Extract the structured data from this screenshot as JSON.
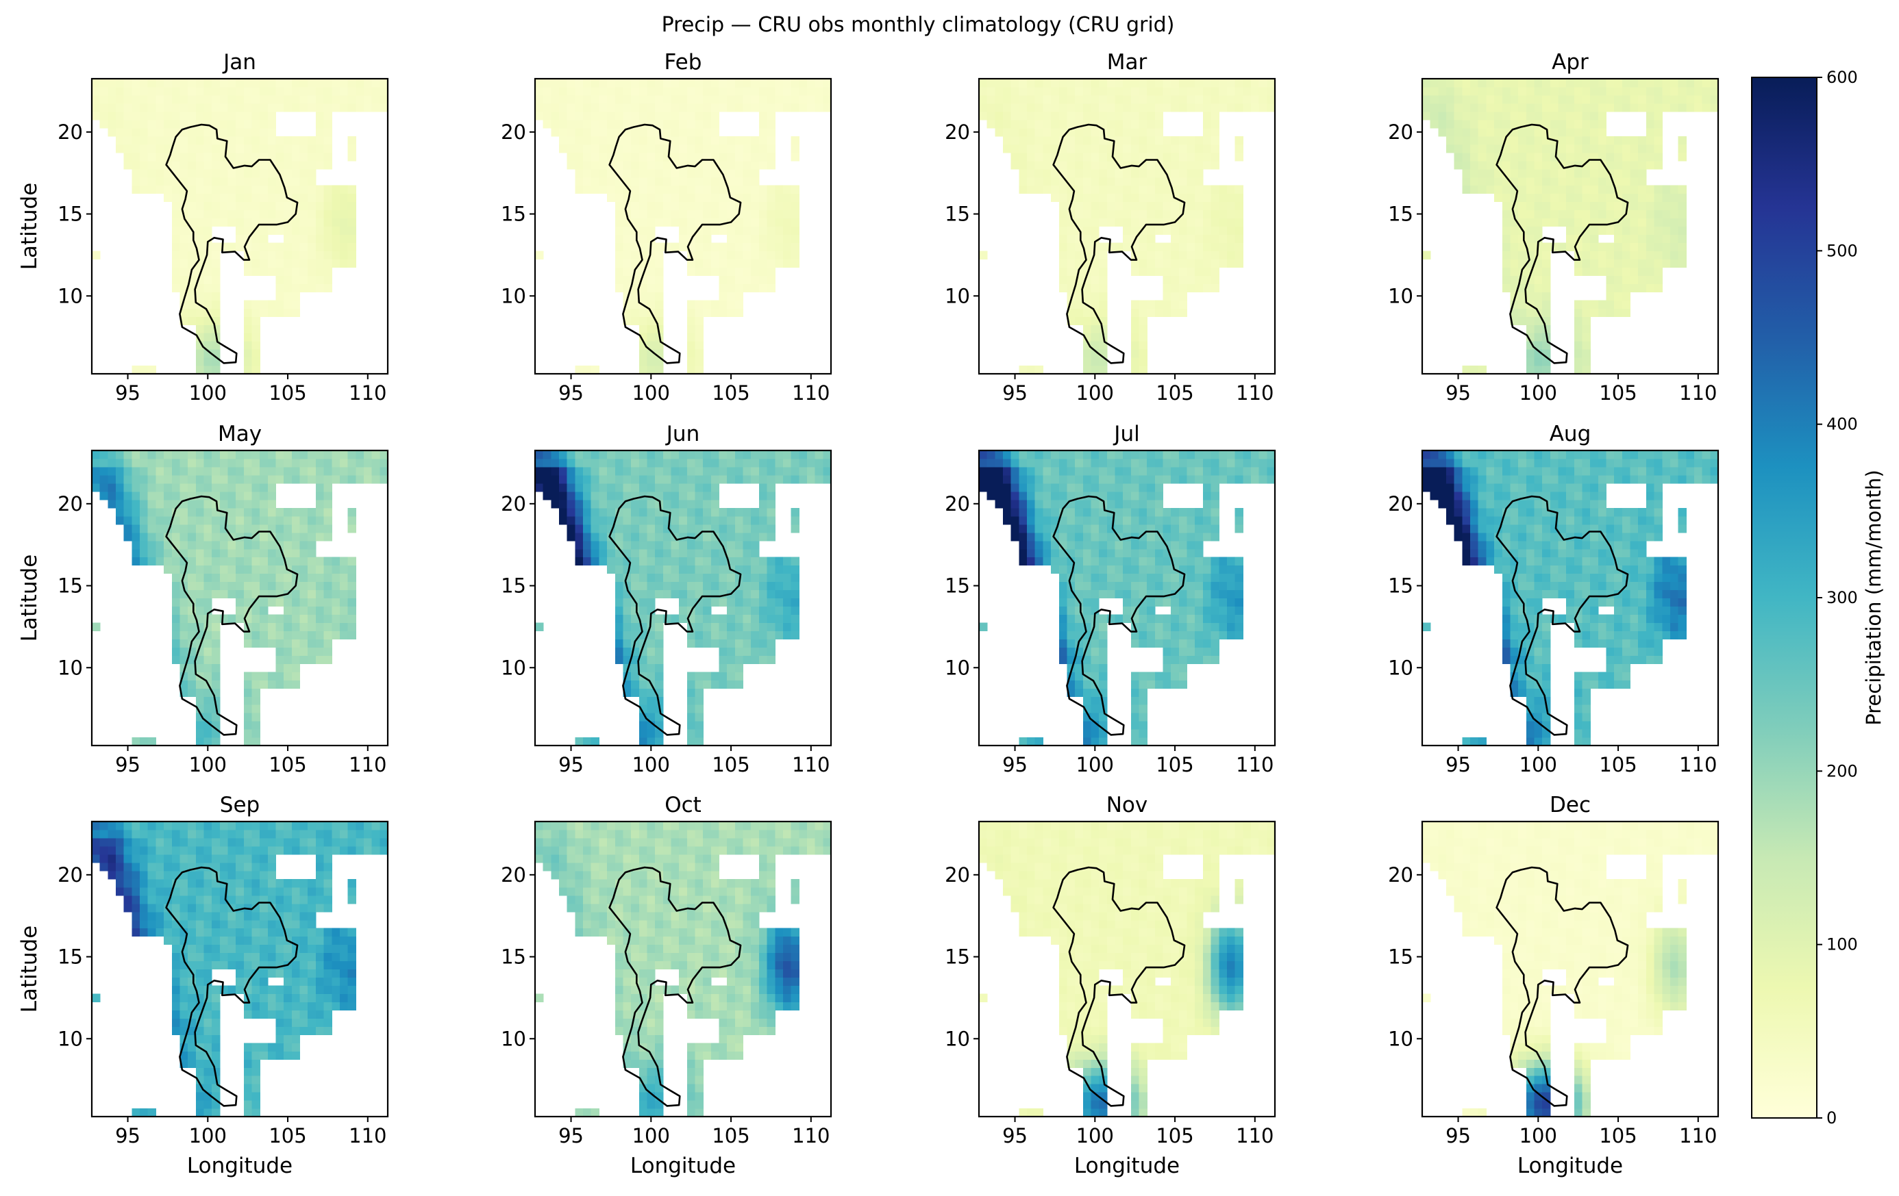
{
  "chart_data": {
    "type": "heatmap",
    "title": "Precip — CRU obs monthly climatology (CRU grid)",
    "xlabel": "Longitude",
    "ylabel": "Latitude",
    "xlim": [
      92.75,
      111.25
    ],
    "ylim": [
      5.25,
      23.25
    ],
    "xticks": [
      95,
      100,
      105,
      110
    ],
    "yticks": [
      10,
      15,
      20
    ],
    "colormap": "YlGnBu",
    "colorbar": {
      "label": "Precipitation (mm/month)",
      "range": [
        0,
        600
      ],
      "ticks": [
        0,
        100,
        200,
        300,
        400,
        500,
        600
      ],
      "stops": [
        "#ffffd9",
        "#edf8b1",
        "#c7e9b4",
        "#7fcdbb",
        "#41b6c4",
        "#1d91c0",
        "#225ea8",
        "#253494",
        "#081d58"
      ]
    },
    "panels": [
      {
        "month": "Jan",
        "mean_mm": 30,
        "southwest_max_mm": 40,
        "east_coast_max_mm": 90,
        "south_max_mm": 180
      },
      {
        "month": "Feb",
        "mean_mm": 25,
        "southwest_max_mm": 30,
        "east_coast_max_mm": 60,
        "south_max_mm": 120
      },
      {
        "month": "Mar",
        "mean_mm": 45,
        "southwest_max_mm": 60,
        "east_coast_max_mm": 70,
        "south_max_mm": 140
      },
      {
        "month": "Apr",
        "mean_mm": 85,
        "southwest_max_mm": 130,
        "east_coast_max_mm": 120,
        "south_max_mm": 200
      },
      {
        "month": "May",
        "mean_mm": 190,
        "southwest_max_mm": 400,
        "east_coast_max_mm": 200,
        "south_max_mm": 260
      },
      {
        "month": "Jun",
        "mean_mm": 230,
        "southwest_max_mm": 650,
        "east_coast_max_mm": 320,
        "south_max_mm": 320
      },
      {
        "month": "Jul",
        "mean_mm": 250,
        "southwest_max_mm": 700,
        "east_coast_max_mm": 360,
        "south_max_mm": 320
      },
      {
        "month": "Aug",
        "mean_mm": 270,
        "southwest_max_mm": 700,
        "east_coast_max_mm": 420,
        "south_max_mm": 330
      },
      {
        "month": "Sep",
        "mean_mm": 290,
        "southwest_max_mm": 520,
        "east_coast_max_mm": 380,
        "south_max_mm": 300
      },
      {
        "month": "Oct",
        "mean_mm": 180,
        "southwest_max_mm": 230,
        "east_coast_max_mm": 470,
        "south_max_mm": 320
      },
      {
        "month": "Nov",
        "mean_mm": 60,
        "southwest_max_mm": 70,
        "east_coast_max_mm": 400,
        "south_max_mm": 420
      },
      {
        "month": "Dec",
        "mean_mm": 25,
        "southwest_max_mm": 30,
        "east_coast_max_mm": 180,
        "south_max_mm": 500
      }
    ]
  }
}
